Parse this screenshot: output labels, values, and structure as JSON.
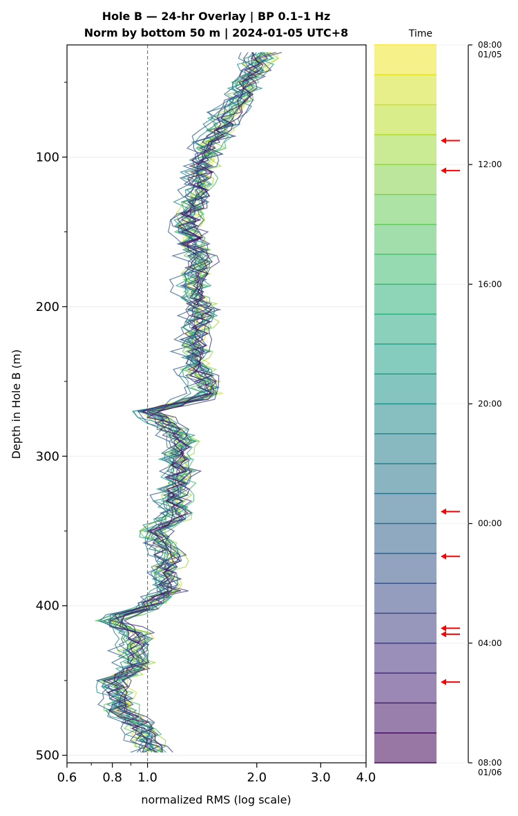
{
  "chart_data": {
    "type": "line",
    "title": "Hole B — 24-hr Overlay  |  BP 0.1–1 Hz",
    "subtitle": "Norm by bottom 50 m  |  2024-01-05 UTC+8",
    "xlabel": "normalized RMS  (log scale)",
    "ylabel": "Depth in Hole B (m)",
    "x_scale": "log",
    "xlim": [
      0.6,
      4.0
    ],
    "ylim": [
      505,
      25
    ],
    "x_ticks": [
      "0.6",
      "0.8",
      "1.0",
      "2.0",
      "3.0",
      "4.0"
    ],
    "y_ticks": [
      "100",
      "200",
      "300",
      "400",
      "500"
    ],
    "reference_line_x": 1.0,
    "grid": "horizontal",
    "colorbar": {
      "title": "Time",
      "colormap": "viridis",
      "ticks": [
        {
          "label": "08:00",
          "sub": "01/05",
          "hour": 0
        },
        {
          "label": "12:00",
          "sub": "",
          "hour": 4
        },
        {
          "label": "16:00",
          "sub": "",
          "hour": 8
        },
        {
          "label": "20:00",
          "sub": "",
          "hour": 12
        },
        {
          "label": "00:00",
          "sub": "",
          "hour": 16
        },
        {
          "label": "04:00",
          "sub": "",
          "hour": 20
        },
        {
          "label": "08:00",
          "sub": "01/06",
          "hour": 24
        }
      ],
      "highlighted_hours": [
        3.2,
        4.2,
        15.6,
        17.1,
        19.5,
        19.7,
        21.3
      ],
      "arrow_color": "#ff0000"
    },
    "depth": [
      30,
      40,
      50,
      60,
      70,
      80,
      90,
      100,
      110,
      120,
      130,
      140,
      150,
      160,
      170,
      180,
      190,
      200,
      210,
      220,
      230,
      240,
      250,
      260,
      270,
      280,
      290,
      300,
      310,
      320,
      330,
      340,
      350,
      360,
      370,
      380,
      390,
      400,
      410,
      420,
      430,
      440,
      450,
      460,
      470,
      480,
      490,
      500
    ],
    "median_profile": [
      2.1,
      2.0,
      1.9,
      1.8,
      1.7,
      1.6,
      1.5,
      1.45,
      1.4,
      1.4,
      1.35,
      1.3,
      1.3,
      1.35,
      1.4,
      1.35,
      1.35,
      1.4,
      1.4,
      1.35,
      1.35,
      1.35,
      1.45,
      1.45,
      1.0,
      1.15,
      1.25,
      1.2,
      1.25,
      1.2,
      1.2,
      1.2,
      1.05,
      1.1,
      1.15,
      1.1,
      1.15,
      1.0,
      0.8,
      0.95,
      0.9,
      0.95,
      0.8,
      0.85,
      0.85,
      0.95,
      1.0,
      1.05
    ],
    "series": [
      {
        "hour": 0.5,
        "scale": 1.0
      },
      {
        "hour": 1.5,
        "scale": 1.03
      },
      {
        "hour": 2.5,
        "scale": 0.98
      },
      {
        "hour": 3.5,
        "scale": 1.05
      },
      {
        "hour": 4.5,
        "scale": 1.0
      },
      {
        "hour": 5.5,
        "scale": 0.97
      },
      {
        "hour": 6.5,
        "scale": 1.02
      },
      {
        "hour": 7.5,
        "scale": 1.04
      },
      {
        "hour": 8.5,
        "scale": 0.99
      },
      {
        "hour": 9.5,
        "scale": 1.01
      },
      {
        "hour": 10.5,
        "scale": 0.96
      },
      {
        "hour": 11.5,
        "scale": 1.03
      },
      {
        "hour": 12.5,
        "scale": 0.94
      },
      {
        "hour": 13.5,
        "scale": 1.0
      },
      {
        "hour": 14.5,
        "scale": 0.98
      },
      {
        "hour": 15.5,
        "scale": 1.02
      },
      {
        "hour": 16.5,
        "scale": 0.92
      },
      {
        "hour": 17.5,
        "scale": 1.0
      },
      {
        "hour": 18.5,
        "scale": 0.97
      },
      {
        "hour": 19.5,
        "scale": 1.05
      },
      {
        "hour": 20.5,
        "scale": 0.99
      },
      {
        "hour": 21.5,
        "scale": 1.01
      },
      {
        "hour": 22.5,
        "scale": 1.0
      },
      {
        "hour": 23.5,
        "scale": 1.0
      }
    ]
  }
}
